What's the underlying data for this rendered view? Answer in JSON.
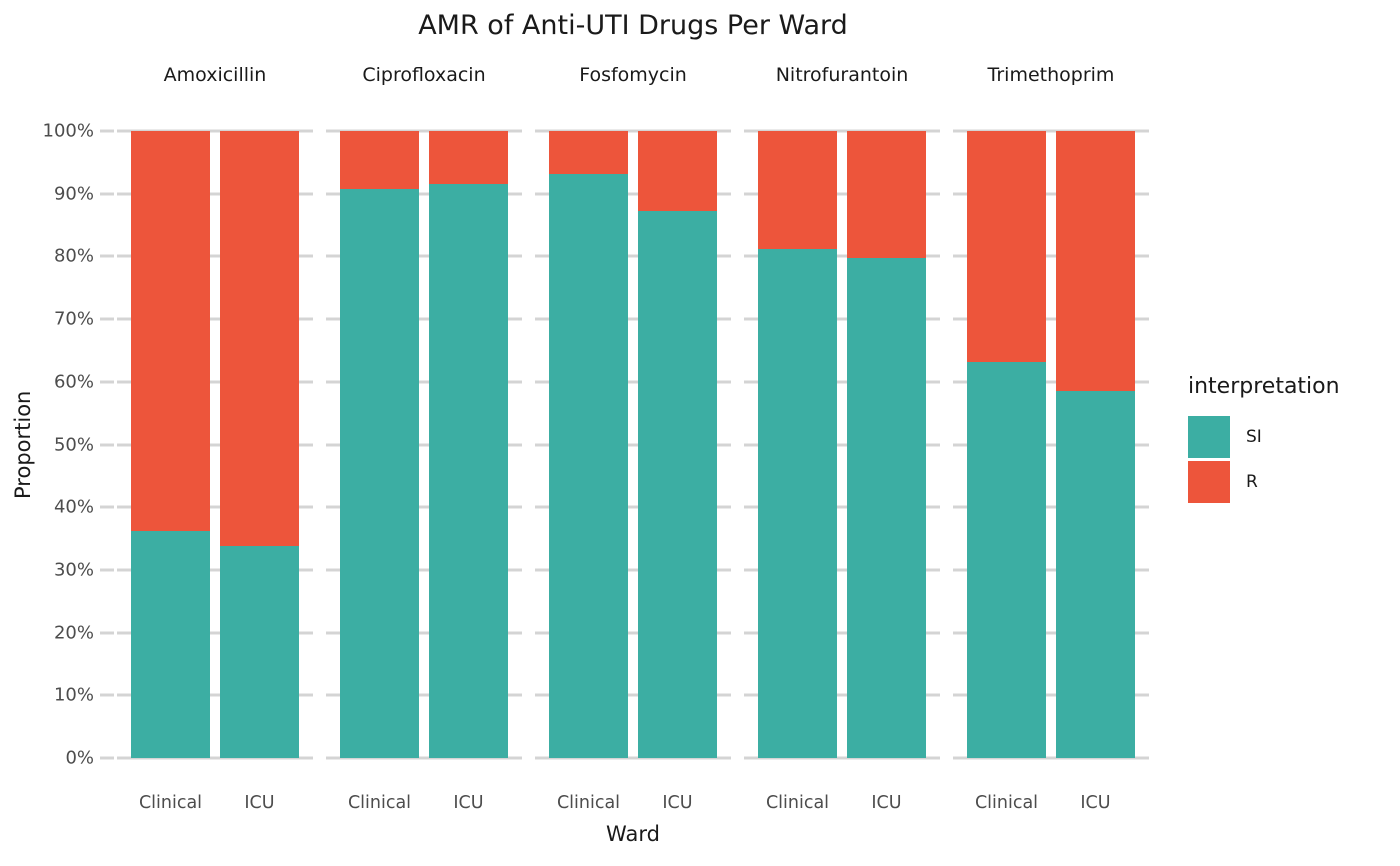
{
  "chart_data": {
    "type": "bar",
    "stacked": true,
    "normalized": true,
    "title": "AMR of Anti-UTI Drugs Per Ward",
    "xlabel": "Ward",
    "ylabel": "Proportion",
    "ylim": [
      0,
      100
    ],
    "grid": true,
    "gridline_color": "#d4d4d4",
    "y_tick_labels": [
      "100%",
      "90%",
      "80%",
      "70%",
      "60%",
      "50%",
      "40%",
      "30%",
      "20%",
      "10%",
      "0%"
    ],
    "categories": [
      "Clinical",
      "ICU"
    ],
    "facets": [
      {
        "name": "Amoxicillin",
        "bars": [
          {
            "ward": "Clinical",
            "SI": 36.2,
            "R": 63.8
          },
          {
            "ward": "ICU",
            "SI": 33.8,
            "R": 66.2
          }
        ]
      },
      {
        "name": "Ciprofloxacin",
        "bars": [
          {
            "ward": "Clinical",
            "SI": 90.8,
            "R": 9.2
          },
          {
            "ward": "ICU",
            "SI": 91.6,
            "R": 8.4
          }
        ]
      },
      {
        "name": "Fosfomycin",
        "bars": [
          {
            "ward": "Clinical",
            "SI": 93.1,
            "R": 6.9
          },
          {
            "ward": "ICU",
            "SI": 87.3,
            "R": 12.7
          }
        ]
      },
      {
        "name": "Nitrofurantoin",
        "bars": [
          {
            "ward": "Clinical",
            "SI": 81.2,
            "R": 18.8
          },
          {
            "ward": "ICU",
            "SI": 79.8,
            "R": 20.2
          }
        ]
      },
      {
        "name": "Trimethoprim",
        "bars": [
          {
            "ward": "Clinical",
            "SI": 63.2,
            "R": 36.8
          },
          {
            "ward": "ICU",
            "SI": 58.5,
            "R": 41.5
          }
        ]
      }
    ],
    "legend": {
      "title": "interpretation",
      "position": "right",
      "entries": [
        {
          "label": "SI",
          "color": "#3CAEA3"
        },
        {
          "label": "R",
          "color": "#ED553B"
        }
      ]
    },
    "colors": {
      "SI": "#3CAEA3",
      "R": "#ED553B"
    }
  }
}
